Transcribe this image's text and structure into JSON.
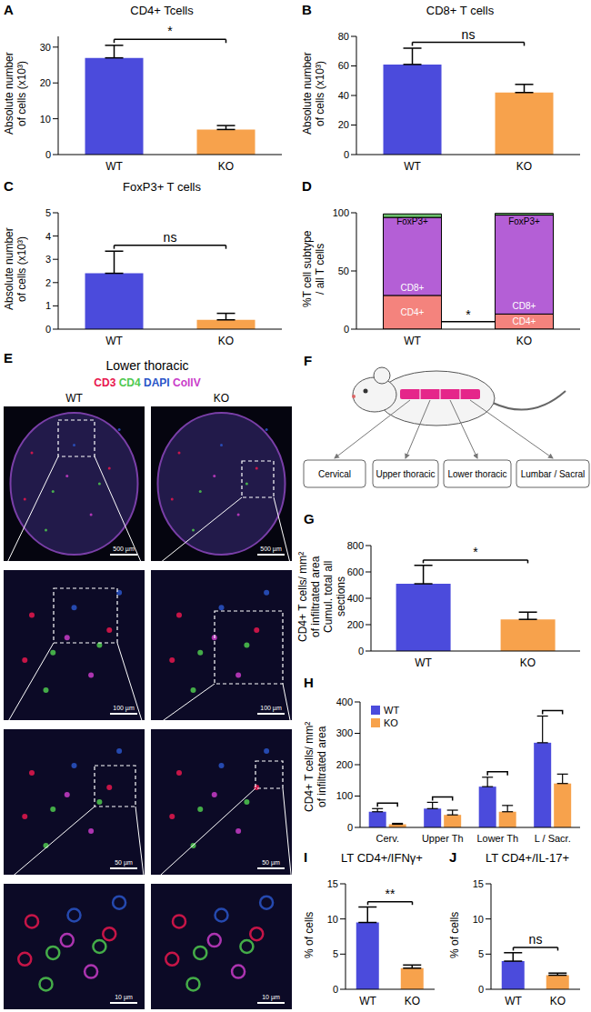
{
  "chart_data": [
    {
      "panel": "A",
      "type": "bar",
      "title": "CD4+ Tcells",
      "y_label": [
        "Absolute number",
        "of cells (x10³)"
      ],
      "categories": [
        "WT",
        "KO"
      ],
      "values": [
        27,
        7
      ],
      "errors": [
        3.5,
        1.1
      ],
      "colors": [
        "#4b4bdc",
        "#f7a24c"
      ],
      "ylim": [
        0,
        33
      ],
      "yticks": [
        0,
        10,
        20,
        30
      ],
      "annotation": "*"
    },
    {
      "panel": "B",
      "type": "bar",
      "title": "CD8+ T cells",
      "y_label": [
        "Absolute number",
        "of cells (x10³)"
      ],
      "categories": [
        "WT",
        "KO"
      ],
      "values": [
        61,
        42
      ],
      "errors": [
        11,
        5.5
      ],
      "colors": [
        "#4b4bdc",
        "#f7a24c"
      ],
      "ylim": [
        0,
        80
      ],
      "yticks": [
        0,
        20,
        40,
        60,
        80
      ],
      "annotation": "ns"
    },
    {
      "panel": "C",
      "type": "bar",
      "title": "FoxP3+ T cells",
      "y_label": [
        "Absolute number",
        "of cells (x10³)"
      ],
      "categories": [
        "WT",
        "KO"
      ],
      "values": [
        2.4,
        0.4
      ],
      "errors": [
        0.95,
        0.28
      ],
      "colors": [
        "#4b4bdc",
        "#f7a24c"
      ],
      "ylim": [
        0,
        5
      ],
      "yticks": [
        0,
        1,
        2,
        3,
        4,
        5
      ],
      "annotation": "ns"
    },
    {
      "panel": "D",
      "type": "bar",
      "stacked": true,
      "y_label": [
        "%T cell subtype",
        "/ all T cells"
      ],
      "categories": [
        "WT",
        "KO"
      ],
      "series": [
        {
          "name": "CD4+",
          "color": "#f4837d",
          "values": [
            29,
            13
          ]
        },
        {
          "name": "CD8+",
          "color": "#b45fd6",
          "values": [
            67,
            85
          ]
        },
        {
          "name": "FoxP3+",
          "color": "#6cc06c",
          "values": [
            3,
            1.5
          ]
        }
      ],
      "ylim": [
        0,
        100
      ],
      "yticks": [
        0,
        50,
        100
      ],
      "annotation": "*"
    },
    {
      "panel": "G",
      "type": "bar",
      "y_label": [
        "CD4+ T cells/ mm²",
        "of infiltrated area",
        "Cumul. total all sections"
      ],
      "categories": [
        "WT",
        "KO"
      ],
      "values": [
        510,
        240
      ],
      "errors": [
        140,
        55
      ],
      "colors": [
        "#4b4bdc",
        "#f7a24c"
      ],
      "ylim": [
        0,
        800
      ],
      "yticks": [
        0,
        200,
        400,
        600,
        800
      ],
      "annotation": "*"
    },
    {
      "panel": "H",
      "type": "bar",
      "y_label": [
        "CD4+ T cells/ mm²",
        "of infiltrated area"
      ],
      "categories": [
        "Cerv.",
        "Upper Th",
        "Lower Th",
        "L / Sacr."
      ],
      "series": [
        {
          "name": "WT",
          "color": "#4b4bdc",
          "values": [
            50,
            60,
            130,
            270
          ],
          "errors": [
            10,
            20,
            30,
            85
          ]
        },
        {
          "name": "KO",
          "color": "#f7a24c",
          "values": [
            10,
            40,
            50,
            140
          ],
          "errors": [
            3,
            15,
            20,
            30
          ]
        }
      ],
      "ylim": [
        0,
        400
      ],
      "yticks": [
        0,
        100,
        200,
        300,
        400
      ],
      "legend": "upper left"
    },
    {
      "panel": "I",
      "type": "bar",
      "title": "LT CD4+/IFNγ+",
      "y_label": [
        "% of cells"
      ],
      "categories": [
        "WT",
        "KO"
      ],
      "values": [
        9.5,
        3
      ],
      "errors": [
        2.2,
        0.45
      ],
      "colors": [
        "#4b4bdc",
        "#f7a24c"
      ],
      "ylim": [
        0,
        15
      ],
      "yticks": [
        0,
        5,
        10,
        15
      ],
      "annotation": "**"
    },
    {
      "panel": "J",
      "type": "bar",
      "title": "LT CD4+/IL-17+",
      "y_label": [
        "% of cells"
      ],
      "categories": [
        "WT",
        "KO"
      ],
      "values": [
        4,
        2
      ],
      "errors": [
        1.2,
        0.3
      ],
      "colors": [
        "#4b4bdc",
        "#f7a24c"
      ],
      "ylim": [
        0,
        15
      ],
      "yticks": [
        0,
        5,
        10,
        15
      ],
      "annotation": "ns"
    }
  ],
  "image_panel": {
    "panel": "E",
    "title": "Lower thoracic",
    "channels": [
      {
        "name": "CD3",
        "color": "#e8174d"
      },
      {
        "name": "CD4",
        "color": "#4fc94f"
      },
      {
        "name": "DAPI",
        "color": "#2a55c8"
      },
      {
        "name": "CollV",
        "color": "#c93cc9"
      }
    ],
    "columns": [
      "WT",
      "KO"
    ],
    "scale_bars": [
      "500 µm",
      "100 µm",
      "50 µm",
      "10 µm"
    ]
  },
  "diagram": {
    "panel": "F",
    "regions": [
      "Cervical",
      "Upper thoracic",
      "Lower thoracic",
      "Lumbar / Sacral"
    ]
  }
}
